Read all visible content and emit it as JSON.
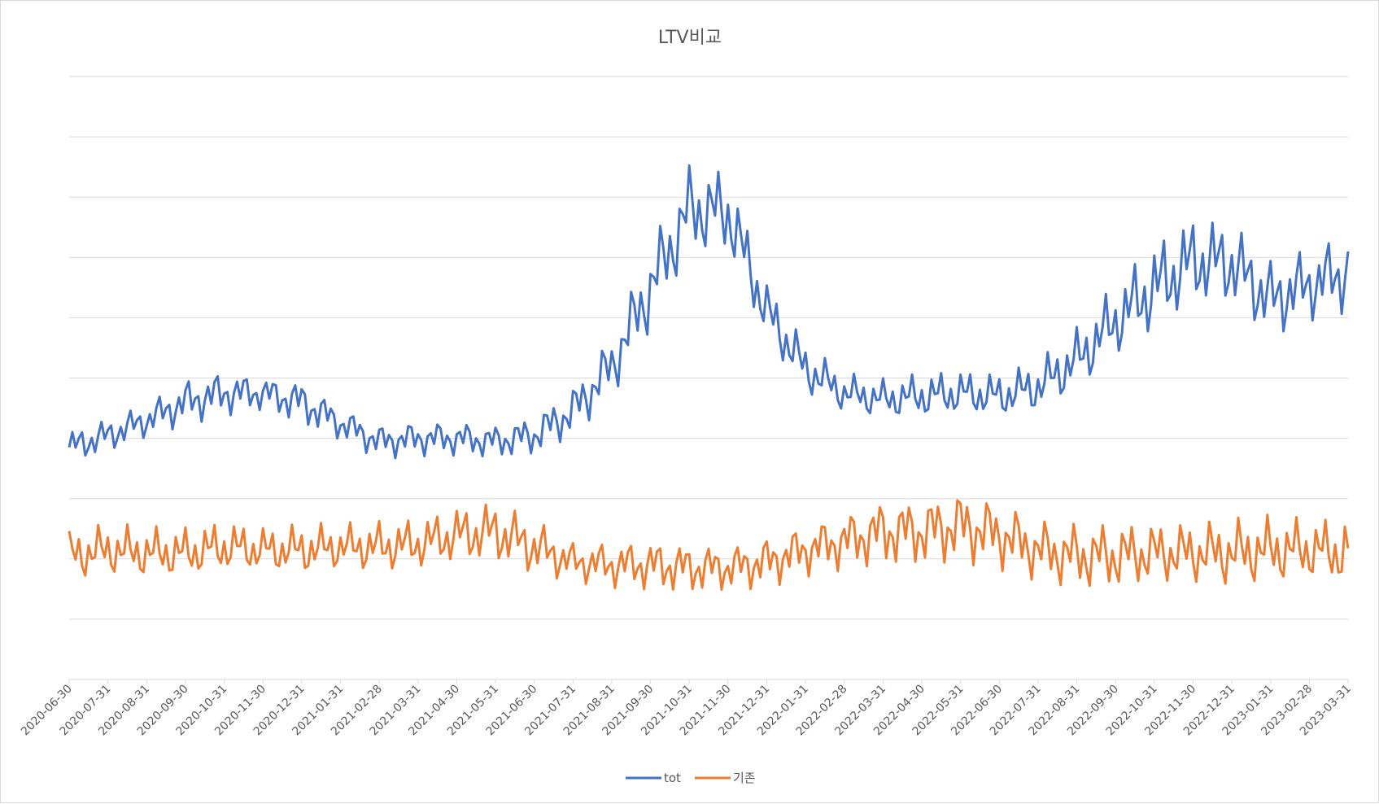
{
  "chart_data": {
    "type": "line",
    "title": "LTV비교",
    "xlabel": "",
    "ylabel": "",
    "y_axis_labels_visible": false,
    "grid": true,
    "legend_position": "bottom",
    "ylim": [
      0,
      10
    ],
    "y_gridlines": [
      0,
      1,
      2,
      3,
      4,
      5,
      6,
      7,
      8,
      9,
      10
    ],
    "categories": [
      "2020-06-30",
      "2020-07-31",
      "2020-08-31",
      "2020-09-30",
      "2020-10-31",
      "2020-11-30",
      "2020-12-31",
      "2021-01-31",
      "2021-02-28",
      "2021-03-31",
      "2021-04-30",
      "2021-05-31",
      "2021-06-30",
      "2021-07-31",
      "2021-08-31",
      "2021-09-30",
      "2021-10-31",
      "2021-11-30",
      "2021-12-31",
      "2022-01-31",
      "2022-02-28",
      "2022-03-31",
      "2022-04-30",
      "2022-05-31",
      "2022-06-30",
      "2022-07-31",
      "2022-08-31",
      "2022-09-30",
      "2022-10-31",
      "2022-11-30",
      "2022-12-31",
      "2023-01-31",
      "2023-02-28",
      "2023-03-31"
    ],
    "series": [
      {
        "name": "tot",
        "color": "#4472c4",
        "values": [
          3.85,
          4.05,
          4.3,
          4.6,
          4.75,
          4.75,
          4.6,
          4.25,
          3.95,
          4.0,
          4.0,
          3.95,
          4.05,
          4.45,
          5.2,
          6.5,
          7.8,
          7.75,
          6.1,
          5.15,
          4.75,
          4.65,
          4.7,
          4.75,
          4.7,
          4.85,
          5.3,
          5.95,
          6.5,
          6.95,
          6.9,
          6.3,
          6.55,
          6.75
        ],
        "amplitude": [
          0.3,
          0.3,
          0.3,
          0.4,
          0.4,
          0.3,
          0.4,
          0.3,
          0.3,
          0.3,
          0.3,
          0.3,
          0.35,
          0.45,
          0.55,
          0.75,
          0.8,
          0.75,
          0.55,
          0.45,
          0.35,
          0.35,
          0.4,
          0.4,
          0.4,
          0.45,
          0.55,
          0.65,
          0.8,
          0.8,
          0.75,
          0.7,
          0.65,
          0.7
        ]
      },
      {
        "name": "기존",
        "color": "#ed7d31",
        "values": [
          2.05,
          2.15,
          2.1,
          2.1,
          2.2,
          2.15,
          2.15,
          2.2,
          2.2,
          2.25,
          2.4,
          2.45,
          2.2,
          1.95,
          1.9,
          1.9,
          1.85,
          1.85,
          1.95,
          2.15,
          2.3,
          2.45,
          2.45,
          2.55,
          2.4,
          2.15,
          2.05,
          2.05,
          2.1,
          2.1,
          2.1,
          2.15,
          2.15,
          2.1
        ],
        "amplitude": [
          0.45,
          0.45,
          0.45,
          0.45,
          0.45,
          0.4,
          0.45,
          0.4,
          0.45,
          0.45,
          0.5,
          0.55,
          0.5,
          0.35,
          0.4,
          0.45,
          0.45,
          0.4,
          0.45,
          0.45,
          0.5,
          0.6,
          0.6,
          0.65,
          0.6,
          0.55,
          0.6,
          0.6,
          0.55,
          0.55,
          0.6,
          0.6,
          0.55,
          0.6
        ]
      }
    ]
  }
}
